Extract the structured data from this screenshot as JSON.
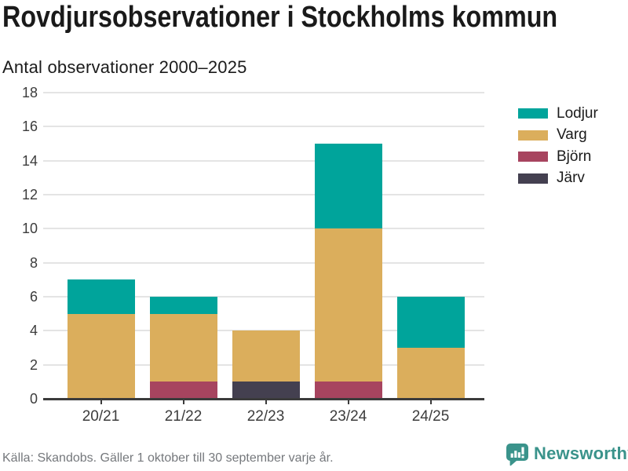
{
  "header": {
    "title": "Rovdjursobservationer i Stockholms kommun",
    "subtitle": "Antal observationer 2000–2025"
  },
  "footer": {
    "source_note": "Källa: Skandobs. Gäller 1 oktober till 30 september varje år.",
    "brand": "Newsworthy"
  },
  "colors": {
    "lodjur": "#00a49b",
    "varg": "#dbae5c",
    "bjorn": "#a7445f",
    "jarv": "#444050",
    "brand_teal": "#3a938b",
    "gridline": "#e4e4e4",
    "axis": "#3b3b3b"
  },
  "chart_data": {
    "type": "bar",
    "stacked": true,
    "title": "Rovdjursobservationer i Stockholms kommun",
    "subtitle": "Antal observationer 2000–2025",
    "categories": [
      "20/21",
      "21/22",
      "22/23",
      "23/24",
      "24/25"
    ],
    "series": [
      {
        "name": "Lodjur",
        "color": "#00a49b",
        "values": [
          2,
          1,
          0,
          5,
          3
        ]
      },
      {
        "name": "Varg",
        "color": "#dbae5c",
        "values": [
          5,
          4,
          3,
          9,
          3
        ]
      },
      {
        "name": "Björn",
        "color": "#a7445f",
        "values": [
          0,
          1,
          0,
          1,
          0
        ]
      },
      {
        "name": "Järv",
        "color": "#444050",
        "values": [
          0,
          0,
          1,
          0,
          0
        ]
      }
    ],
    "stack_order_bottom_up": [
      "Järv",
      "Björn",
      "Varg",
      "Lodjur"
    ],
    "totals": [
      7,
      6,
      4,
      15,
      6
    ],
    "ylim": [
      0,
      18
    ],
    "ytick_step": 2,
    "yticks": [
      0,
      2,
      4,
      6,
      8,
      10,
      12,
      14,
      16,
      18
    ],
    "grid": true,
    "legend_position": "right"
  }
}
